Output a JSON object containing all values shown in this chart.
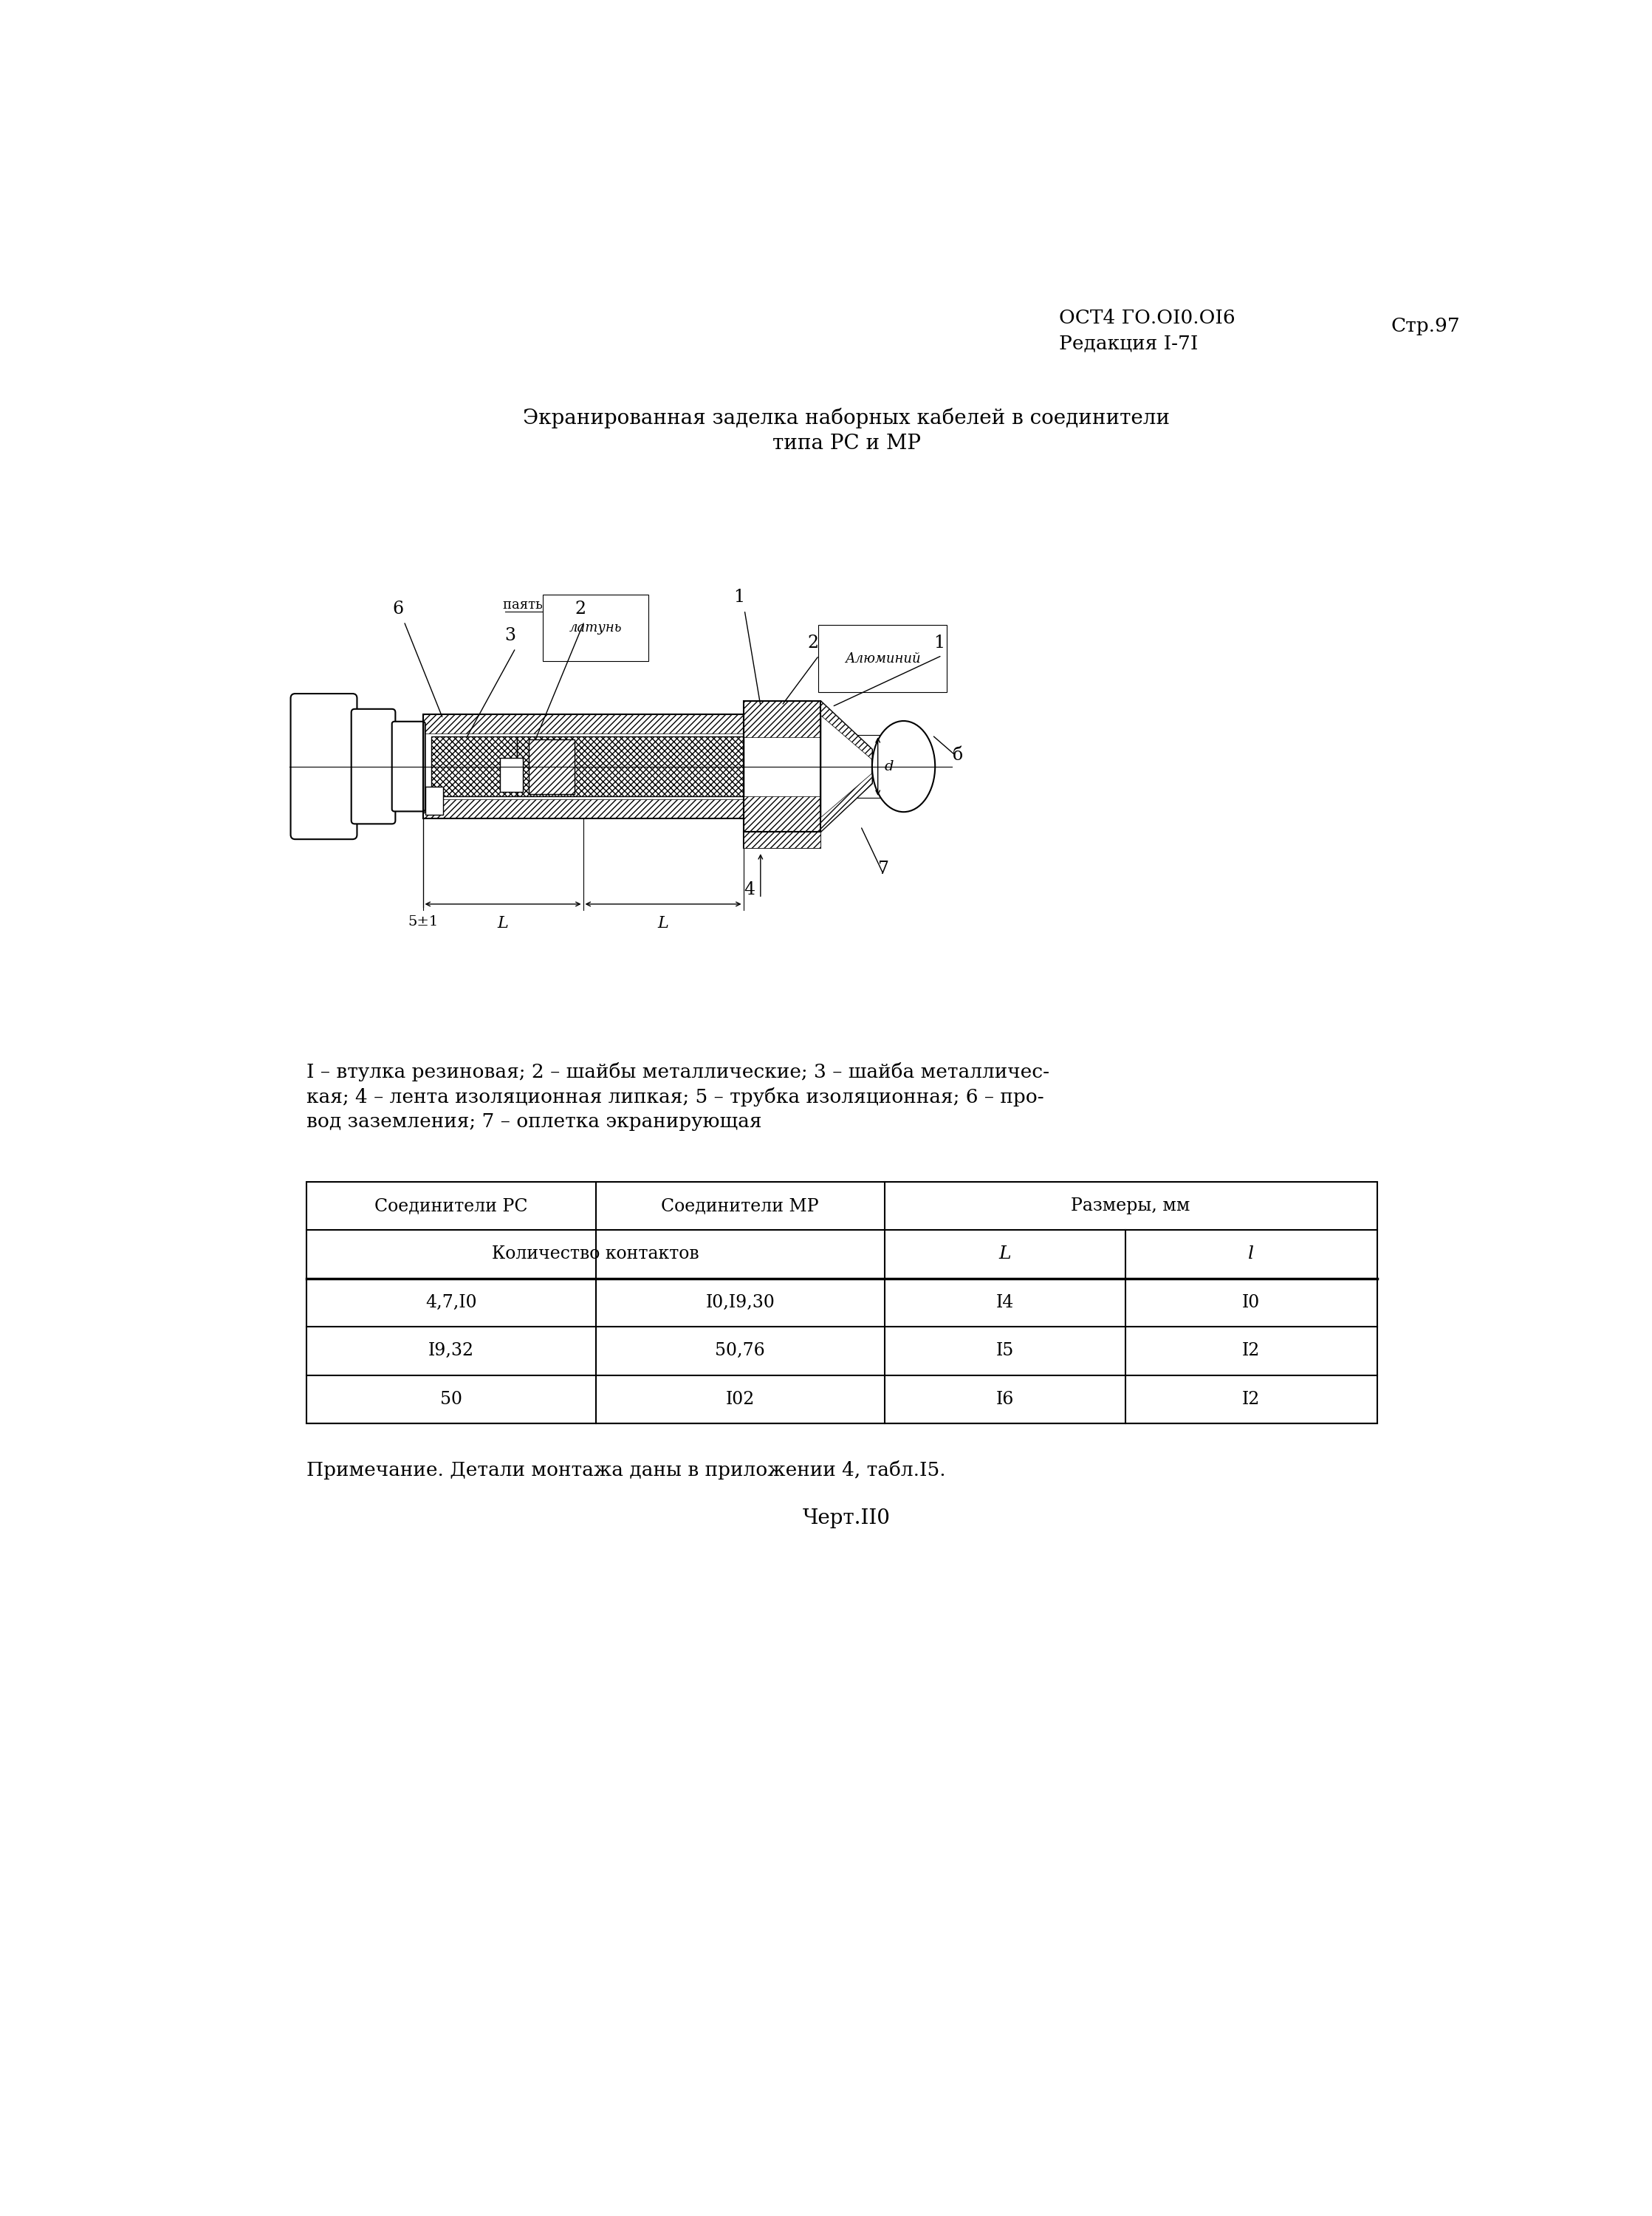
{
  "background_color": "#ffffff",
  "header_right_line1": "ОСТ4 ГО.ОI0.ОI6",
  "header_right_line2": "Редакция I-7I",
  "header_right_page": "Стр.97",
  "title_line1": "Экранированная заделка наборных кабелей в соединители",
  "title_line2": "типа РС и МР",
  "legend_line1": "I – втулка резиновая; 2 – шайбы металлические; 3 – шайба металличес-",
  "legend_line2": "кая; 4 – лента изоляционная липкая; 5 – трубка изоляционная; 6 – про-",
  "legend_line3": "вод заземления; 7 – оплетка экранирующая",
  "table_col1_header": "Соединители РС",
  "table_col2_header": "Соединители МР",
  "table_col3_header": "Размеры, мм",
  "table_subrow_col12": "Количество контактов",
  "table_subrow_L": "L",
  "table_subrow_l": "l",
  "table_rows": [
    [
      "4,7,I0",
      "I0,I9,30",
      "I4",
      "I0"
    ],
    [
      "I9,32",
      "50,76",
      "I5",
      "I2"
    ],
    [
      "50",
      "I02",
      "I6",
      "I2"
    ]
  ],
  "note_text": "Примечание. Детали монтажа даны в приложении 4, табл.I5.",
  "drawing_number": "Черт.II0"
}
